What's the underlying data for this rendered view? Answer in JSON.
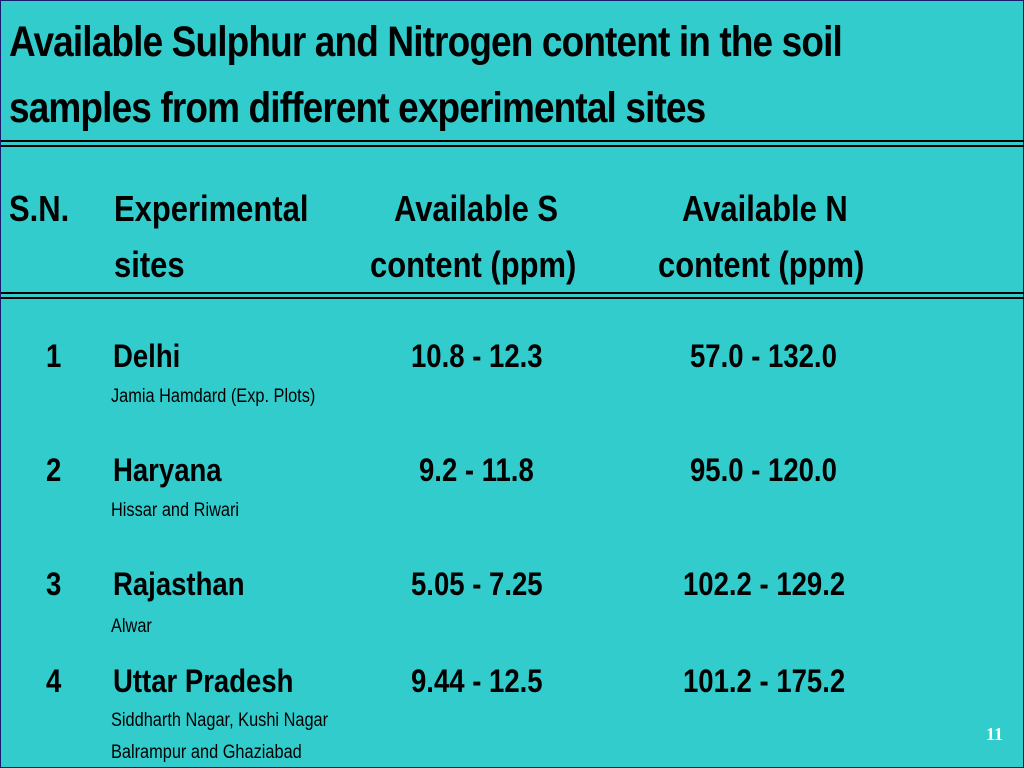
{
  "slide": {
    "title_line1": "Available Sulphur and Nitrogen content in the soil",
    "title_line2": "samples from different experimental sites",
    "page_number": "11"
  },
  "table": {
    "headers": {
      "sn": "S.N.",
      "sites_line1": "Experimental",
      "sites_line2": "sites",
      "s_line1": "Available S",
      "s_line2": "content (ppm)",
      "n_line1": "Available N",
      "n_line2": "content (ppm)"
    },
    "rows": [
      {
        "sn": "1",
        "state": "Delhi",
        "detail1": "Jamia Hamdard (Exp. Plots)",
        "detail2": "",
        "s": "10.8 - 12.3",
        "n": "57.0 - 132.0"
      },
      {
        "sn": "2",
        "state": "Haryana",
        "detail1": "Hissar and Riwari",
        "detail2": "",
        "s": "9.2 - 11.8",
        "n": "95.0 - 120.0"
      },
      {
        "sn": "3",
        "state": "Rajasthan",
        "detail1": "Alwar",
        "detail2": "",
        "s": "5.05 - 7.25",
        "n": "102.2 - 129.2"
      },
      {
        "sn": "4",
        "state": "Uttar Pradesh",
        "detail1": "Siddharth Nagar, Kushi Nagar",
        "detail2": "Balrampur and Ghaziabad",
        "s": "9.44 - 12.5",
        "n": "101.2 - 175.2"
      }
    ]
  },
  "colors": {
    "background": "#33CCCC",
    "text": "#000000",
    "page_number": "#FFFFFF"
  }
}
